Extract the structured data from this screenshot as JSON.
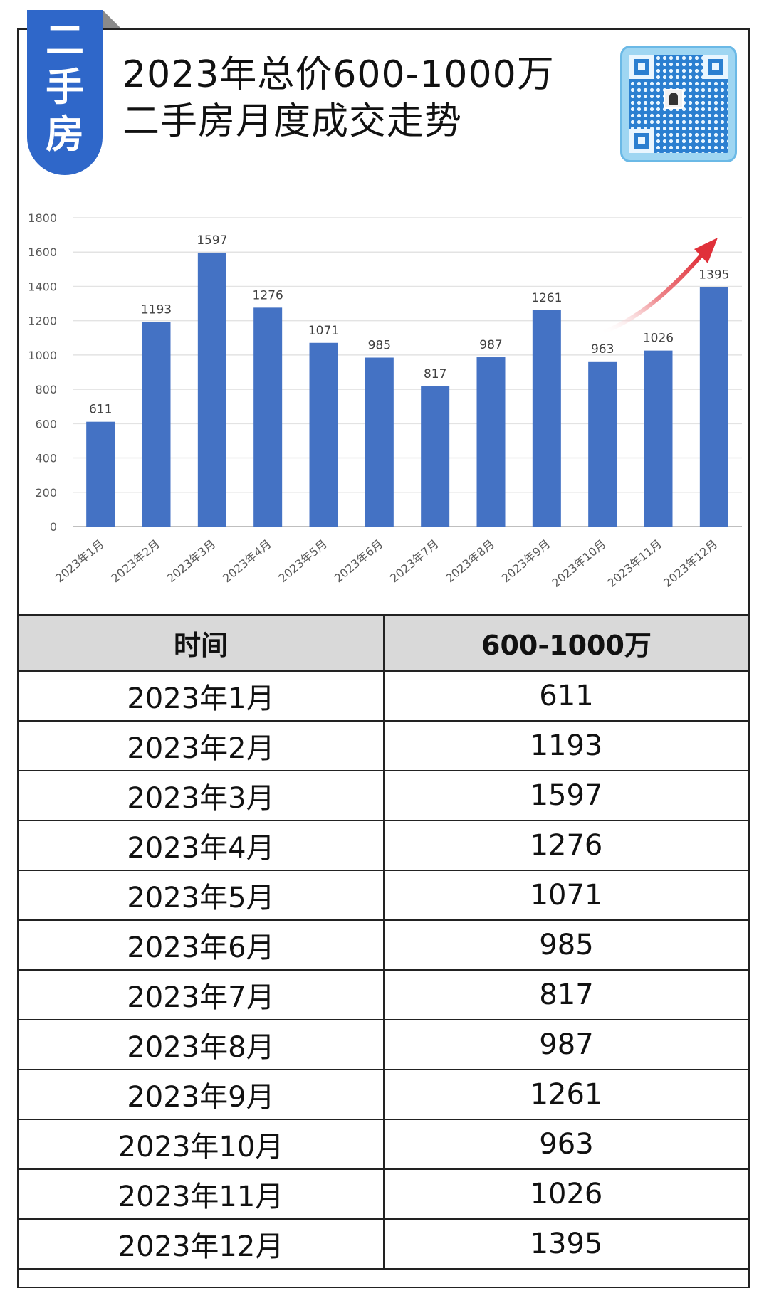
{
  "tag": {
    "chars": [
      "二",
      "手",
      "房"
    ]
  },
  "title": {
    "line1": "2023年总价600-1000万",
    "line2": "二手房月度成交走势"
  },
  "qr": {
    "icon": "qr-code-icon",
    "colors": {
      "frame": "#9fd6f2",
      "modules": "#2b7fd0"
    }
  },
  "colors": {
    "bar": "#4472c4",
    "tag": "#2f67c9",
    "arrow": "#e0313a",
    "header_bg": "#d9d9d9"
  },
  "chart_data": {
    "type": "bar",
    "categories": [
      "2023年1月",
      "2023年2月",
      "2023年3月",
      "2023年4月",
      "2023年5月",
      "2023年6月",
      "2023年7月",
      "2023年8月",
      "2023年9月",
      "2023年10月",
      "2023年11月",
      "2023年12月"
    ],
    "values": [
      611,
      1193,
      1597,
      1276,
      1071,
      985,
      817,
      987,
      1261,
      963,
      1026,
      1395
    ],
    "yticks": [
      "0",
      "200",
      "400",
      "600",
      "800",
      "1000",
      "1200",
      "1400",
      "1600",
      "1800"
    ],
    "ylim": [
      0,
      1800
    ],
    "grid": true,
    "annotation": "trend-arrow-up"
  },
  "table": {
    "headers": [
      "时间",
      "600-1000万"
    ],
    "rows": [
      [
        "2023年1月",
        "611"
      ],
      [
        "2023年2月",
        "1193"
      ],
      [
        "2023年3月",
        "1597"
      ],
      [
        "2023年4月",
        "1276"
      ],
      [
        "2023年5月",
        "1071"
      ],
      [
        "2023年6月",
        "985"
      ],
      [
        "2023年7月",
        "817"
      ],
      [
        "2023年8月",
        "987"
      ],
      [
        "2023年9月",
        "1261"
      ],
      [
        "2023年10月",
        "963"
      ],
      [
        "2023年11月",
        "1026"
      ],
      [
        "2023年12月",
        "1395"
      ]
    ]
  }
}
